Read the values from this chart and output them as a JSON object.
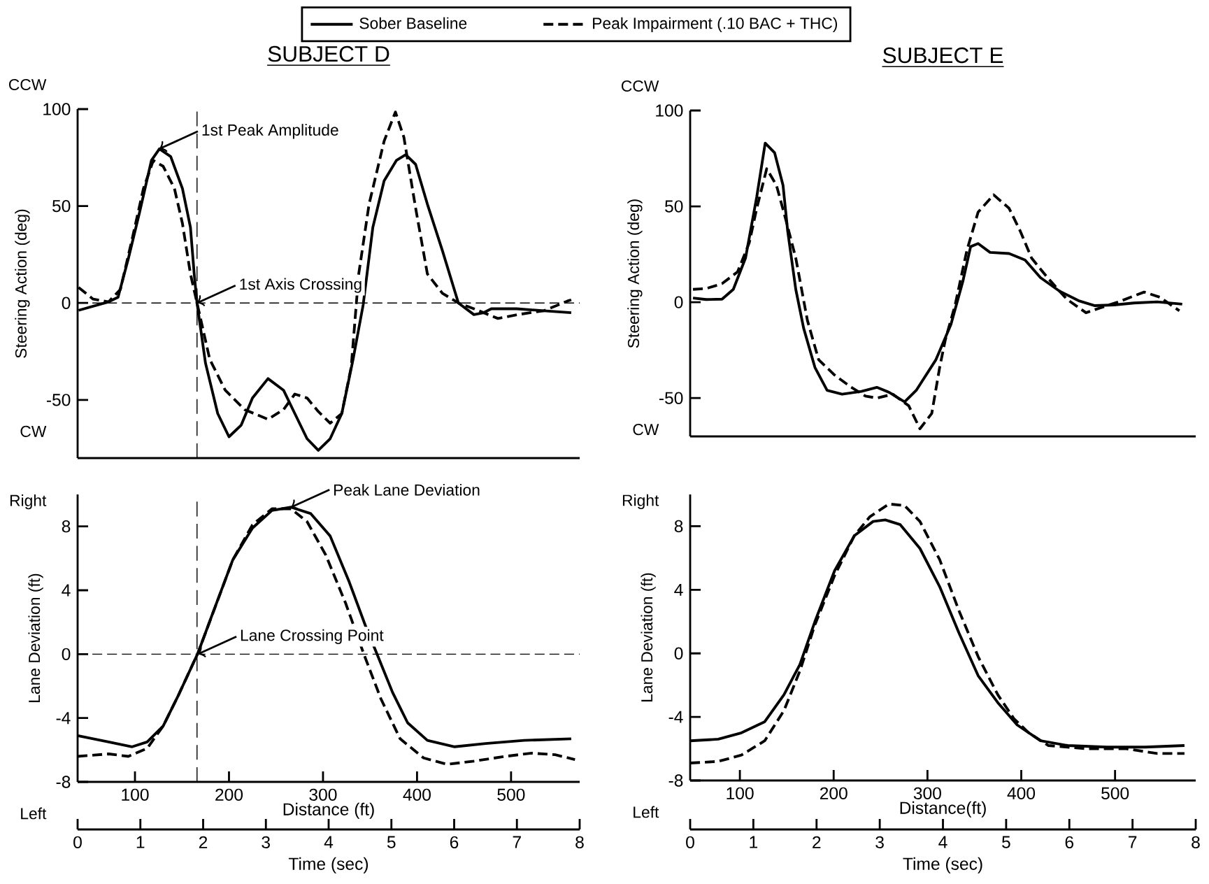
{
  "chart_data": [
    {
      "type": "line",
      "title": "SUBJECT D",
      "ylabel": "Steering Action (deg)",
      "xlim": [
        39,
        573
      ],
      "ylim": [
        -80,
        100
      ],
      "yticks": [
        -50,
        0,
        50,
        100
      ],
      "tick_labels": "y",
      "legend": "top",
      "series": [
        {
          "name": "Sober Baseline",
          "color": "#000000",
          "line_style": "solid",
          "x": [
            40,
            60.7,
            72,
            82,
            93,
            105,
            117.5,
            126,
            138,
            150.5,
            159,
            163,
            166,
            175,
            188,
            200,
            213,
            225,
            241.5,
            258,
            270,
            283,
            295,
            307.6,
            320,
            332,
            342.7,
            353,
            365,
            378,
            388,
            398.5,
            411,
            427,
            444,
            460.5,
            471,
            479,
            506,
            535,
            564
          ],
          "values": [
            -3.8,
            -1,
            0.6,
            3,
            23,
            47,
            73.5,
            79.5,
            75.5,
            59,
            39,
            15,
            0,
            -31,
            -57,
            -69,
            -63,
            -49,
            -39,
            -45,
            -57,
            -70,
            -76,
            -70,
            -57,
            -29,
            -1,
            39,
            63,
            73.5,
            76.5,
            71.5,
            51,
            27,
            0,
            -6,
            -5,
            -3,
            -3,
            -4,
            -5
          ]
        },
        {
          "name": "Peak Impairment (.10 BAC + THC)",
          "color": "#000000",
          "line_style": "dashed",
          "x": [
            40,
            55.5,
            72,
            84.5,
            97,
            109,
            119.5,
            130,
            142,
            150.5,
            159,
            166,
            179.5,
            196,
            216.7,
            241.5,
            258,
            270,
            283,
            295,
            307.6,
            320,
            330,
            338,
            349,
            365,
            377,
            386,
            398.5,
            411,
            427,
            444,
            460.5,
            486,
            507,
            535,
            560,
            564
          ],
          "values": [
            8,
            2,
            0.6,
            7,
            33,
            59,
            73.5,
            70.5,
            59,
            41,
            15,
            0,
            -29,
            -45,
            -55,
            -60,
            -55,
            -47,
            -49,
            -56,
            -62,
            -57,
            -33,
            15,
            51,
            83.5,
            98.5,
            85.5,
            49,
            15,
            5,
            0,
            -3,
            -8,
            -6,
            -4,
            1,
            1.6
          ]
        }
      ],
      "ref_lines": [
        {
          "axis": "y",
          "value": 0,
          "line_style": "dashed"
        },
        {
          "axis": "x",
          "value": 166,
          "line_style": "dashed"
        }
      ],
      "annotations": [
        "CCW",
        "CW",
        {
          "text": "1st Peak Amplitude",
          "x": 126,
          "y": 79.5
        },
        {
          "text": "1st Axis Crossing",
          "x": 166,
          "y": 0
        }
      ]
    },
    {
      "type": "line",
      "title": "SUBJECT E",
      "ylabel": "Steering Action (deg)",
      "xlim": [
        47,
        586
      ],
      "ylim": [
        -70,
        100
      ],
      "yticks": [
        -50,
        0,
        50,
        100
      ],
      "tick_labels": "y",
      "series": [
        {
          "color": "#000000",
          "line_style": "solid",
          "x": [
            50,
            64,
            81,
            93,
            106,
            118,
            127,
            137,
            146,
            151,
            159.6,
            168,
            180,
            193,
            209,
            229.6,
            246,
            259,
            275.6,
            288,
            309,
            325,
            337.7,
            346,
            354,
            366.7,
            387,
            404,
            420.5,
            441,
            462,
            478.5,
            499,
            520,
            545,
            571.6
          ],
          "values": [
            2.2,
            1.4,
            1.6,
            6.7,
            23,
            55,
            83,
            78,
            61,
            37,
            6.7,
            -13.6,
            -34,
            -46,
            -48,
            -46.5,
            -44.4,
            -47,
            -52,
            -46,
            -30,
            -11.6,
            10.8,
            29,
            30.6,
            26,
            25.4,
            22,
            12.8,
            5.7,
            0.6,
            -1.8,
            -1.4,
            -0.4,
            0.2,
            -1
          ]
        },
        {
          "color": "#000000",
          "line_style": "dashed",
          "x": [
            50,
            64,
            81,
            97.5,
            110,
            118,
            128.6,
            139,
            149,
            159.6,
            172,
            184,
            201,
            217.6,
            234,
            246,
            263,
            280,
            292,
            304.6,
            313,
            319,
            329.5,
            342,
            354,
            370.6,
            387,
            399,
            411,
            428,
            448.5,
            469,
            481.6,
            506,
            531,
            548,
            568.6
          ],
          "values": [
            6.7,
            7.1,
            9.7,
            15.8,
            31,
            49,
            69.6,
            61,
            43,
            23,
            -9.5,
            -30,
            -38,
            -44,
            -49,
            -50,
            -48,
            -54,
            -66,
            -58,
            -34,
            -19.7,
            -1.4,
            27,
            47,
            56,
            49,
            37,
            23,
            12.8,
            1.6,
            -5.5,
            -3.4,
            0.6,
            5.3,
            2.6,
            -4.5
          ]
        }
      ],
      "annotations": [
        "CCW",
        "CW"
      ]
    },
    {
      "type": "line",
      "xlabel": "Distance (ft)",
      "ylabel": "Lane Deviation (ft)",
      "x2label": "Time (sec)",
      "xlim": [
        39,
        573
      ],
      "ylim": [
        -8,
        10
      ],
      "xticks": [
        100,
        200,
        300,
        400,
        500
      ],
      "yticks": [
        -8,
        -4,
        0,
        4,
        8
      ],
      "x2lim": [
        0,
        8
      ],
      "x2ticks": [
        0,
        1,
        2,
        3,
        4,
        5,
        6,
        7,
        8
      ],
      "series": [
        {
          "color": "#000000",
          "line_style": "solid",
          "x": [
            39,
            72,
            97,
            113,
            130,
            146,
            167,
            183.6,
            204,
            225,
            245.7,
            266,
            287,
            307.6,
            328,
            345,
            357,
            374,
            390,
            411,
            440,
            473,
            514,
            564
          ],
          "values": [
            -5.1,
            -5.5,
            -5.8,
            -5.5,
            -4.5,
            -2.6,
            0.07,
            2.7,
            5.9,
            7.9,
            9.0,
            9.2,
            8.8,
            7.4,
            4.5,
            1.8,
            0.07,
            -2.4,
            -4.3,
            -5.4,
            -5.8,
            -5.6,
            -5.4,
            -5.3
          ]
        },
        {
          "color": "#000000",
          "line_style": "dashed",
          "x": [
            39,
            72,
            93,
            113,
            130,
            146,
            167,
            204,
            225,
            245.7,
            266,
            283,
            303,
            324,
            343,
            361.6,
            382,
            407,
            432,
            460.5,
            494,
            522,
            547,
            568
          ],
          "values": [
            -6.4,
            -6.25,
            -6.4,
            -5.9,
            -4.5,
            -2.6,
            0.07,
            5.9,
            8.1,
            9.1,
            9.1,
            8.3,
            6.2,
            3.2,
            0.07,
            -2.8,
            -5.3,
            -6.5,
            -6.9,
            -6.7,
            -6.4,
            -6.2,
            -6.3,
            -6.6
          ]
        }
      ],
      "ref_lines": [
        {
          "axis": "y",
          "value": 0,
          "line_style": "dashed"
        },
        {
          "axis": "x",
          "value": 166,
          "line_style": "dashed"
        }
      ],
      "annotations": [
        "Right",
        "Left",
        {
          "text": "Lane Crossing Point",
          "x": 167,
          "y": 0
        },
        {
          "text": "Peak Lane Deviation",
          "x": 266,
          "y": 9.2
        }
      ]
    },
    {
      "type": "line",
      "xlabel": "Distance(ft)",
      "ylabel": "Lane Deviation (ft)",
      "x2label": "Time (sec)",
      "xlim": [
        47,
        586
      ],
      "ylim": [
        -8,
        10
      ],
      "xticks": [
        100,
        200,
        300,
        400,
        500
      ],
      "yticks": [
        -8,
        -4,
        0,
        4,
        8
      ],
      "x2lim": [
        0,
        8
      ],
      "x2ticks": [
        0,
        1,
        2,
        3,
        4,
        5,
        6,
        7,
        8
      ],
      "series": [
        {
          "color": "#000000",
          "line_style": "solid",
          "x": [
            47,
            77,
            101.7,
            126.5,
            147,
            164,
            180,
            201,
            222,
            242,
            255,
            271,
            292,
            313,
            333.5,
            354,
            375,
            395.6,
            420.5,
            449.5,
            491,
            532,
            574
          ],
          "values": [
            -5.5,
            -5.4,
            -5.0,
            -4.3,
            -2.6,
            -0.7,
            2.0,
            5.2,
            7.4,
            8.3,
            8.4,
            8.1,
            6.6,
            4.2,
            1.3,
            -1.4,
            -3.1,
            -4.5,
            -5.5,
            -5.8,
            -5.9,
            -5.9,
            -5.8
          ]
        },
        {
          "color": "#000000",
          "line_style": "dashed",
          "x": [
            47,
            77,
            101.7,
            126.5,
            147,
            164,
            180,
            201,
            222,
            238.6,
            259,
            275.6,
            292,
            313,
            333.5,
            354,
            375,
            392,
            408,
            429,
            470,
            512,
            545,
            574
          ],
          "values": [
            -6.9,
            -6.8,
            -6.4,
            -5.5,
            -3.6,
            -1.1,
            1.8,
            4.9,
            7.4,
            8.6,
            9.4,
            9.3,
            8.3,
            5.9,
            2.7,
            -0.2,
            -2.6,
            -4.1,
            -5.0,
            -5.8,
            -6.0,
            -6.0,
            -6.3,
            -6.3
          ]
        }
      ],
      "annotations": [
        "Right",
        "Left"
      ]
    }
  ]
}
